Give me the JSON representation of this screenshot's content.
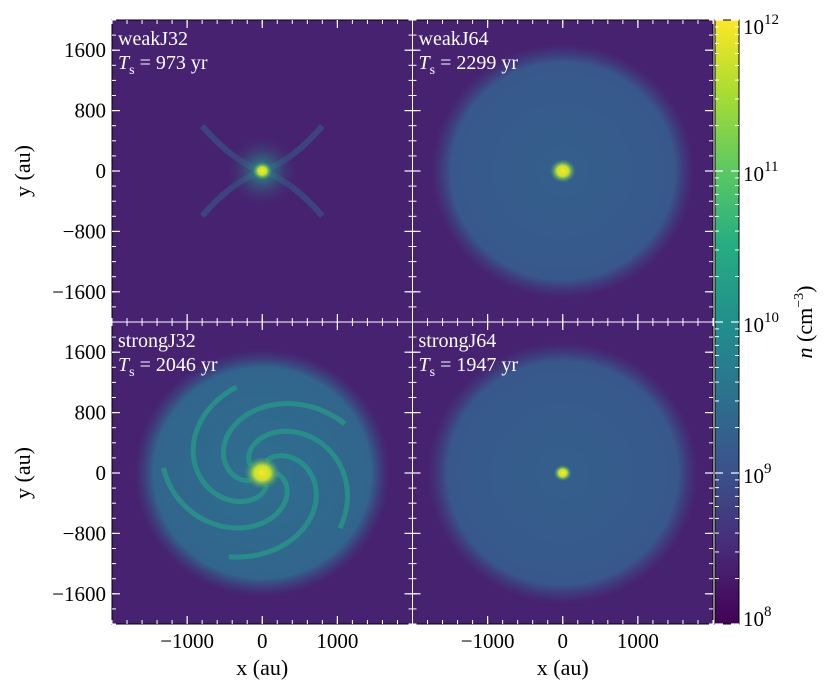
{
  "chart_data": {
    "type": "heatmap",
    "colormap": "viridis",
    "panels": [
      {
        "name": "weakJ32",
        "label": "weakJ32",
        "ts_prefix": "T",
        "ts_sub": "s",
        "ts_text": " = 973 yr",
        "peak_density": 1000000000000.0,
        "envelope_density": 1500000000.0,
        "background_density": 250000000.0,
        "envelope_radius_au": 0,
        "core_radius_au": 120,
        "feature": "compact core with filamentary arms"
      },
      {
        "name": "weakJ64",
        "label": "weakJ64",
        "ts_prefix": "T",
        "ts_sub": "s",
        "ts_text": " = 2299 yr",
        "peak_density": 1000000000000.0,
        "envelope_density": 1500000000.0,
        "background_density": 250000000.0,
        "envelope_radius_au": 1750,
        "core_radius_au": 160,
        "feature": "extended envelope with central core"
      },
      {
        "name": "strongJ32",
        "label": "strongJ32",
        "ts_prefix": "T",
        "ts_sub": "s",
        "ts_text": " = 2046 yr",
        "peak_density": 1000000000000.0,
        "envelope_density": 2500000000.0,
        "background_density": 250000000.0,
        "envelope_radius_au": 1700,
        "core_radius_au": 220,
        "feature": "spiral structure around central core"
      },
      {
        "name": "strongJ64",
        "label": "strongJ64",
        "ts_prefix": "T",
        "ts_sub": "s",
        "ts_text": " = 1947 yr",
        "peak_density": 1000000000000.0,
        "envelope_density": 1500000000.0,
        "background_density": 250000000.0,
        "envelope_radius_au": 1800,
        "core_radius_au": 110,
        "feature": "extended envelope with compact core"
      }
    ],
    "x_range": [
      -2000,
      2000
    ],
    "y_range": [
      -2000,
      2000
    ],
    "x_ticks": [
      -1000,
      0,
      1000
    ],
    "x_tick_labels": [
      "−1000",
      "0",
      "1000"
    ],
    "y_ticks": [
      1600,
      800,
      0,
      -800,
      -1600
    ],
    "y_tick_labels": [
      "1600",
      "800",
      "0",
      "−800",
      "−1600"
    ],
    "xlabel": "x (au)",
    "ylabel": "y (au)",
    "colorbar": {
      "label_main": "n (cm",
      "label_exp": "−3",
      "label_close": ")",
      "scale": "log",
      "range": [
        100000000.0,
        1000000000000.0
      ],
      "ticks": [
        1000000000000.0,
        100000000000.0,
        10000000000.0,
        1000000000.0,
        100000000.0
      ],
      "tick_labels": [
        {
          "base": "10",
          "exp": "12"
        },
        {
          "base": "10",
          "exp": "11"
        },
        {
          "base": "10",
          "exp": "10"
        },
        {
          "base": "10",
          "exp": "9"
        },
        {
          "base": "10",
          "exp": "8"
        }
      ]
    }
  }
}
